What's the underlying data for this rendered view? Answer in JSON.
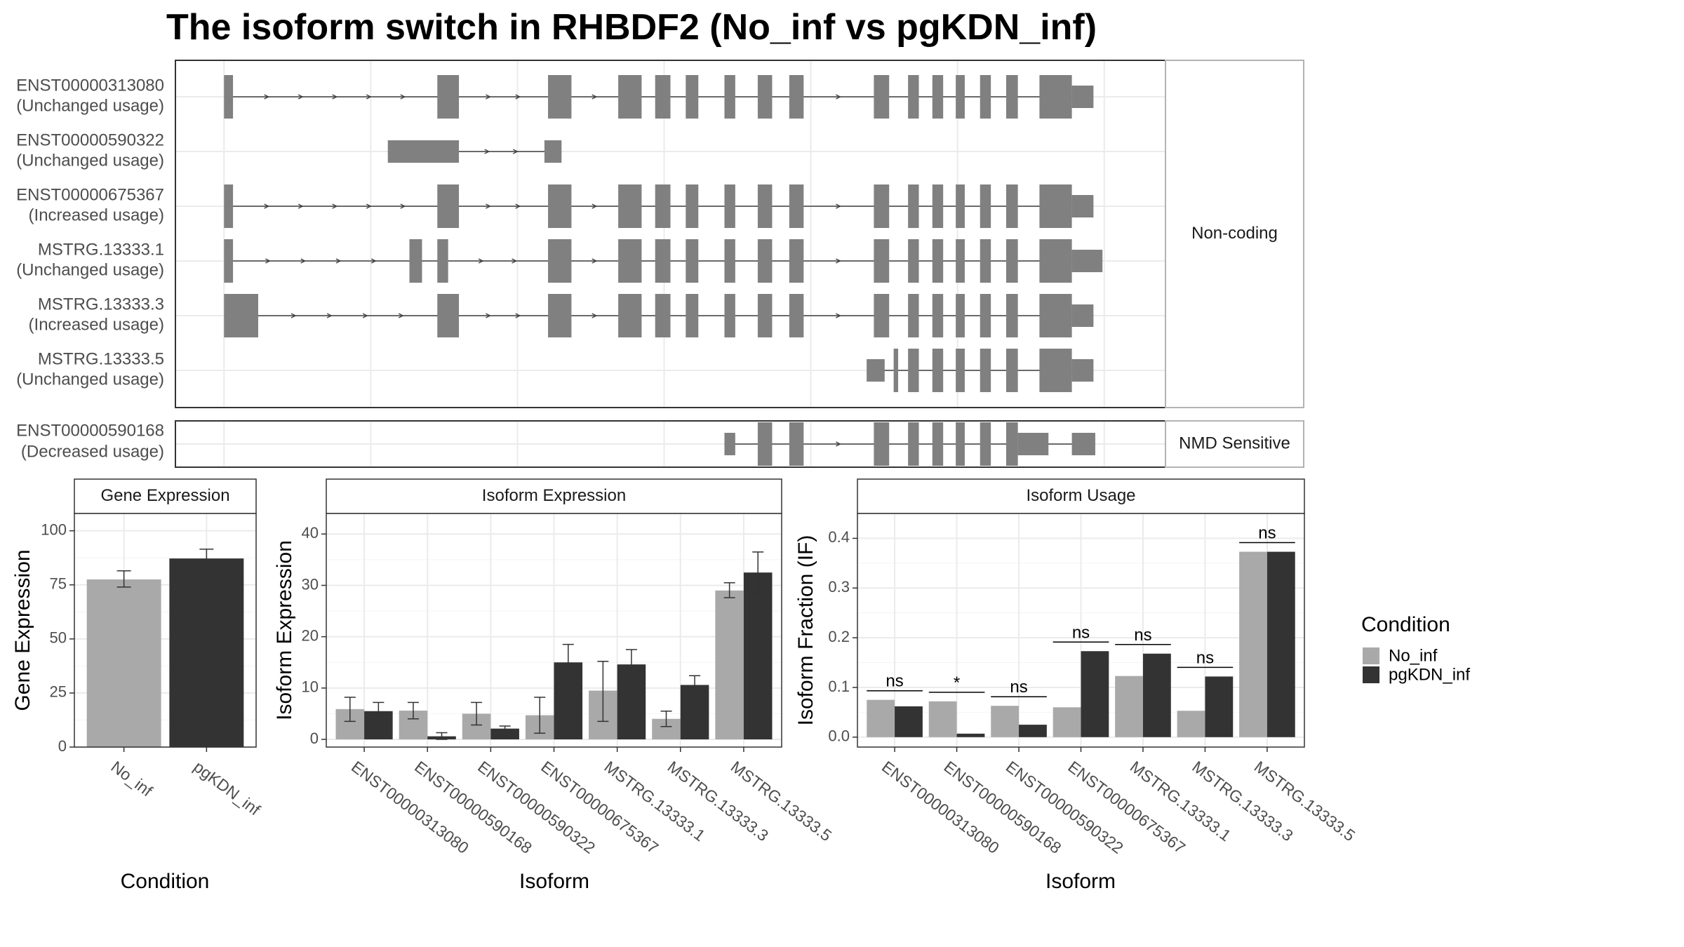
{
  "title": "The isoform switch in RHBDF2 (No_inf vs pgKDN_inf)",
  "colors": {
    "no_inf": "#A9A9A9",
    "pgkdn_inf": "#333333",
    "exon": "#808080",
    "intron": "#404040",
    "grid": "#EBEBEB",
    "panel_border": "#333333",
    "strip_border": "#B3B3B3"
  },
  "structure": {
    "genomic_range": [
      -2,
      1098
    ],
    "groups": [
      {
        "label": "Non-coding",
        "transcripts": [
          {
            "id": "ENST00000313080",
            "usage": "(Unchanged usage)",
            "exons": [
              [
                52,
                62
              ],
              [
                289,
                313
              ],
              [
                412,
                438
              ],
              [
                490,
                516
              ],
              [
                531,
                548
              ],
              [
                565,
                579
              ],
              [
                608,
                620
              ],
              [
                645,
                661
              ],
              [
                680,
                696
              ],
              [
                774,
                791
              ],
              [
                812,
                824
              ],
              [
                839,
                851
              ],
              [
                865,
                875
              ],
              [
                892,
                904
              ],
              [
                921,
                934
              ],
              [
                958,
                994
              ],
              [
                994,
                1018
              ]
            ],
            "thick": [
              true,
              true,
              true,
              true,
              true,
              true,
              true,
              true,
              true,
              true,
              true,
              true,
              true,
              true,
              true,
              true,
              false
            ]
          },
          {
            "id": "ENST00000590322",
            "usage": "(Unchanged usage)",
            "exons": [
              [
                234,
                313
              ],
              [
                408,
                427
              ]
            ],
            "thick": [
              false,
              false
            ]
          },
          {
            "id": "ENST00000675367",
            "usage": "(Increased usage)",
            "exons": [
              [
                52,
                62
              ],
              [
                289,
                313
              ],
              [
                412,
                438
              ],
              [
                490,
                516
              ],
              [
                531,
                548
              ],
              [
                565,
                579
              ],
              [
                608,
                620
              ],
              [
                645,
                661
              ],
              [
                680,
                696
              ],
              [
                774,
                791
              ],
              [
                812,
                824
              ],
              [
                839,
                851
              ],
              [
                865,
                875
              ],
              [
                892,
                904
              ],
              [
                921,
                934
              ],
              [
                958,
                994
              ],
              [
                994,
                1018
              ]
            ],
            "thick": [
              true,
              true,
              true,
              true,
              true,
              true,
              true,
              true,
              true,
              true,
              true,
              true,
              true,
              true,
              true,
              true,
              false
            ]
          },
          {
            "id": "MSTRG.13333.1",
            "usage": "(Unchanged usage)",
            "exons": [
              [
                52,
                62
              ],
              [
                258,
                272
              ],
              [
                289,
                301
              ],
              [
                412,
                438
              ],
              [
                490,
                516
              ],
              [
                531,
                548
              ],
              [
                565,
                579
              ],
              [
                608,
                620
              ],
              [
                645,
                661
              ],
              [
                680,
                696
              ],
              [
                774,
                791
              ],
              [
                812,
                824
              ],
              [
                839,
                851
              ],
              [
                865,
                875
              ],
              [
                892,
                904
              ],
              [
                921,
                934
              ],
              [
                958,
                994
              ],
              [
                994,
                1028
              ]
            ],
            "thick": [
              true,
              true,
              true,
              true,
              true,
              true,
              true,
              true,
              true,
              true,
              true,
              true,
              true,
              true,
              true,
              true,
              true,
              false
            ]
          },
          {
            "id": "MSTRG.13333.3",
            "usage": "(Increased usage)",
            "exons": [
              [
                52,
                90
              ],
              [
                289,
                313
              ],
              [
                412,
                438
              ],
              [
                490,
                516
              ],
              [
                531,
                548
              ],
              [
                565,
                579
              ],
              [
                608,
                620
              ],
              [
                645,
                661
              ],
              [
                680,
                696
              ],
              [
                774,
                791
              ],
              [
                812,
                824
              ],
              [
                839,
                851
              ],
              [
                865,
                875
              ],
              [
                892,
                904
              ],
              [
                921,
                934
              ],
              [
                958,
                994
              ],
              [
                994,
                1018
              ]
            ],
            "thick": [
              true,
              true,
              true,
              true,
              true,
              true,
              true,
              true,
              true,
              true,
              true,
              true,
              true,
              true,
              true,
              true,
              false
            ]
          },
          {
            "id": "MSTRG.13333.5",
            "usage": "(Unchanged usage)",
            "exons": [
              [
                766,
                786
              ],
              [
                796,
                801
              ],
              [
                812,
                824
              ],
              [
                839,
                851
              ],
              [
                865,
                875
              ],
              [
                892,
                904
              ],
              [
                921,
                934
              ],
              [
                958,
                994
              ],
              [
                994,
                1018
              ]
            ],
            "thick": [
              false,
              true,
              true,
              true,
              true,
              true,
              true,
              true,
              false
            ]
          }
        ]
      },
      {
        "label": "NMD Sensitive",
        "transcripts": [
          {
            "id": "ENST00000590168",
            "usage": "(Decreased usage)",
            "exons": [
              [
                608,
                620
              ],
              [
                645,
                661
              ],
              [
                680,
                696
              ],
              [
                774,
                791
              ],
              [
                812,
                824
              ],
              [
                839,
                851
              ],
              [
                865,
                875
              ],
              [
                892,
                904
              ],
              [
                921,
                934
              ],
              [
                934,
                968
              ],
              [
                994,
                1020
              ]
            ],
            "thick": [
              false,
              true,
              true,
              true,
              true,
              true,
              true,
              true,
              true,
              false,
              false
            ]
          }
        ]
      }
    ]
  },
  "legend": {
    "title": "Condition",
    "items": [
      "No_inf",
      "pgKDN_inf"
    ]
  },
  "chart_data": [
    {
      "type": "bar",
      "strip": "Gene Expression",
      "xlabel": "Condition",
      "ylabel": "Gene Expression",
      "ylim": [
        0,
        108
      ],
      "yticks": [
        0,
        25,
        50,
        75,
        100
      ],
      "categories": [
        "No_inf",
        "pgKDN_inf"
      ],
      "values": [
        77.5,
        87.2
      ],
      "errors": [
        [
          74,
          81.5
        ],
        [
          83,
          91.5
        ]
      ]
    },
    {
      "type": "bar",
      "strip": "Isoform Expression",
      "xlabel": "Isoform",
      "ylabel": "Isoform Expression",
      "ylim": [
        -1.5,
        44
      ],
      "yticks": [
        0,
        10,
        20,
        30,
        40
      ],
      "categories": [
        "ENST00000313080",
        "ENST00000590168",
        "ENST00000590322",
        "ENST00000675367",
        "MSTRG.13333.1",
        "MSTRG.13333.3",
        "MSTRG.13333.5"
      ],
      "series": [
        {
          "name": "No_inf",
          "values": [
            5.9,
            5.6,
            5.0,
            4.7,
            9.5,
            4.0,
            29.0
          ],
          "errors": [
            [
              3.5,
              8.2
            ],
            [
              4.0,
              7.2
            ],
            [
              2.8,
              7.2
            ],
            [
              1.2,
              8.2
            ],
            [
              3.5,
              15.2
            ],
            [
              2.5,
              5.5
            ],
            [
              27.6,
              30.5
            ]
          ]
        },
        {
          "name": "pgKDN_inf",
          "values": [
            5.5,
            0.6,
            2.1,
            15.0,
            14.6,
            10.6,
            32.5
          ],
          "errors": [
            [
              3.8,
              7.2
            ],
            [
              0.0,
              1.3
            ],
            [
              1.6,
              2.6
            ],
            [
              11.5,
              18.5
            ],
            [
              11.8,
              17.5
            ],
            [
              8.7,
              12.4
            ],
            [
              28.5,
              36.5
            ]
          ]
        }
      ]
    },
    {
      "type": "bar",
      "strip": "Isoform Usage",
      "xlabel": "Isoform",
      "ylabel": "Isoform Fraction (IF)",
      "ylim": [
        -0.02,
        0.45
      ],
      "yticks": [
        0.0,
        0.1,
        0.2,
        0.3,
        0.4
      ],
      "categories": [
        "ENST00000313080",
        "ENST00000590168",
        "ENST00000590322",
        "ENST00000675367",
        "MSTRG.13333.1",
        "MSTRG.13333.3",
        "MSTRG.13333.5"
      ],
      "series": [
        {
          "name": "No_inf",
          "values": [
            0.075,
            0.072,
            0.063,
            0.06,
            0.123,
            0.053,
            0.373
          ]
        },
        {
          "name": "pgKDN_inf",
          "values": [
            0.062,
            0.007,
            0.025,
            0.173,
            0.168,
            0.122,
            0.373
          ]
        }
      ],
      "significance": [
        "ns",
        "*",
        "ns",
        "ns",
        "ns",
        "ns",
        "ns"
      ]
    }
  ]
}
